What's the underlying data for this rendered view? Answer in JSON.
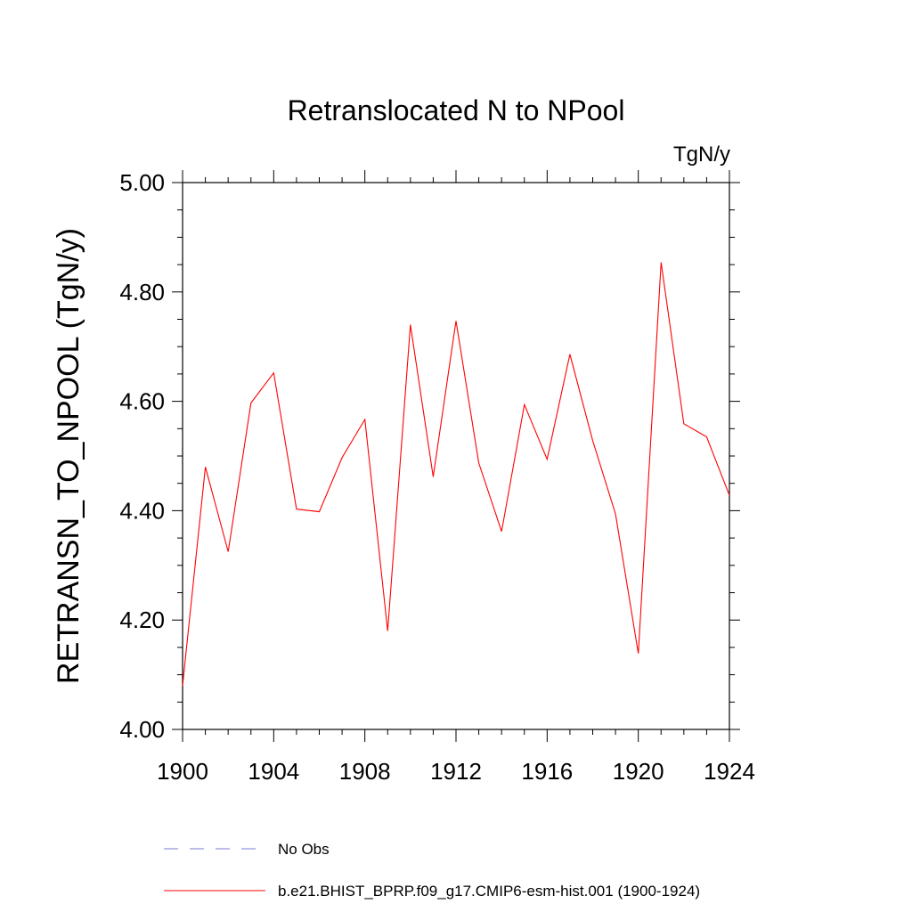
{
  "chart_data": {
    "type": "line",
    "title": "Retranslocated N to NPool",
    "units": "TgN/y",
    "ylabel": "RETRANSN_TO_NPOOL  (TgN/y)",
    "xlabel": "",
    "xlim": [
      1900,
      1924
    ],
    "ylim": [
      4.0,
      5.0
    ],
    "xticks": [
      1900,
      1904,
      1908,
      1912,
      1916,
      1920,
      1924
    ],
    "xtick_labels": [
      "1900",
      "1904",
      "1908",
      "1912",
      "1916",
      "1920",
      "1924"
    ],
    "yticks": [
      4.0,
      4.2,
      4.4,
      4.6,
      4.8,
      5.0
    ],
    "ytick_labels": [
      "4.00",
      "4.20",
      "4.40",
      "4.60",
      "4.80",
      "5.00"
    ],
    "grid": false,
    "legend_position": "bottom",
    "series": [
      {
        "name": "No Obs",
        "color": "#7b7bd6",
        "dash": "dashed",
        "x": [],
        "values": []
      },
      {
        "name": "b.e21.BHIST_BPRP.f09_g17.CMIP6-esm-hist.001 (1900-1924)",
        "color": "#ff0000",
        "dash": "solid",
        "x": [
          1900,
          1901,
          1902,
          1903,
          1904,
          1905,
          1906,
          1907,
          1908,
          1909,
          1910,
          1911,
          1912,
          1913,
          1914,
          1915,
          1916,
          1917,
          1918,
          1919,
          1920,
          1921,
          1922,
          1923,
          1924
        ],
        "values": [
          4.08,
          4.48,
          4.325,
          4.597,
          4.652,
          4.403,
          4.398,
          4.497,
          4.567,
          4.18,
          4.74,
          4.462,
          4.747,
          4.487,
          4.362,
          4.594,
          4.494,
          4.686,
          4.528,
          4.394,
          4.139,
          4.854,
          4.559,
          4.535,
          4.428
        ]
      }
    ]
  }
}
